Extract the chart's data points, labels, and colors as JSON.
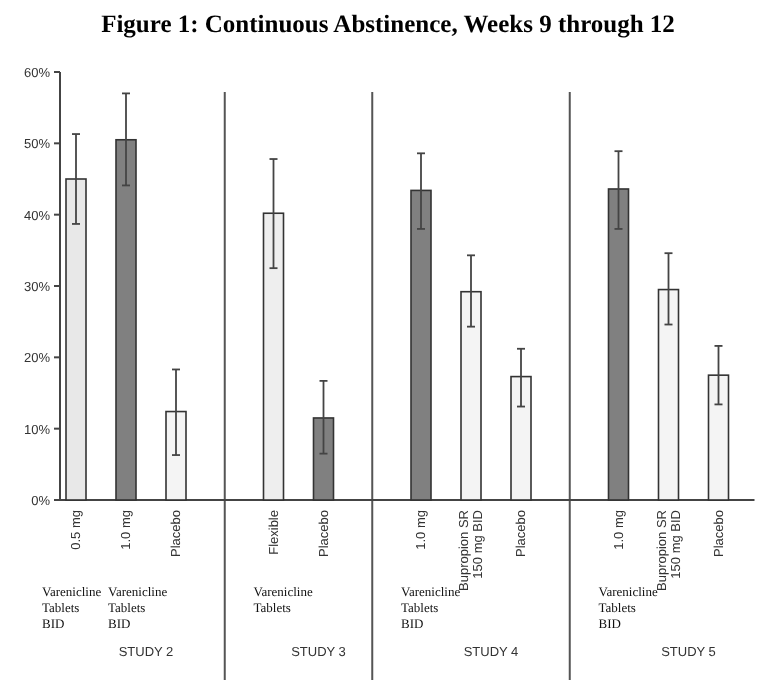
{
  "chart_data": {
    "type": "bar",
    "title": "Figure 1: Continuous Abstinence, Weeks 9 through 12",
    "categories": [
      "0.5 mg",
      "1.0 mg",
      "Placebo",
      "Flexible",
      "Placebo",
      "1.0 mg",
      "Bupropion SR 150 mg BID",
      "Placebo",
      "1.0 mg",
      "Bupropion SR 150 mg BID",
      "Placebo"
    ],
    "values": [
      45,
      50.5,
      12.4,
      40.2,
      11.5,
      43.4,
      29.2,
      17.3,
      43.6,
      29.5,
      17.5
    ],
    "colors": [
      "#e8e8e8",
      "#808080",
      "#f4f4f4",
      "#eeeeee",
      "#808080",
      "#808080",
      "#f4f4f4",
      "#f4f4f4",
      "#808080",
      "#f4f4f4",
      "#f4f4f4"
    ],
    "errors": [
      [
        38.7,
        51.3
      ],
      [
        44.1,
        57
      ],
      [
        6.3,
        18.3
      ],
      [
        32.5,
        47.8
      ],
      [
        6.5,
        16.7
      ],
      [
        38,
        48.6
      ],
      [
        24.3,
        34.3
      ],
      [
        13.1,
        21.2
      ],
      [
        38,
        48.9
      ],
      [
        24.6,
        34.6
      ],
      [
        13.4,
        21.6
      ]
    ],
    "ylim": [
      0,
      60
    ],
    "yticks": [
      {
        "value": 0,
        "label": "0%"
      },
      {
        "value": 10,
        "label": "10%"
      },
      {
        "value": 20,
        "label": "20%"
      },
      {
        "value": 30,
        "label": "30%"
      },
      {
        "value": 40,
        "label": "40%"
      },
      {
        "value": 50,
        "label": "50%"
      },
      {
        "value": 60,
        "label": "60%"
      }
    ],
    "annotations": [
      "Varenicline Tablets BID",
      "Varenicline Tablets BID",
      "STUDY 2",
      "Varenicline Tablets",
      "STUDY 3",
      "Varenicline Tablets BID",
      "STUDY 4",
      "Varenicline Tablets BID",
      "STUDY 5"
    ]
  }
}
